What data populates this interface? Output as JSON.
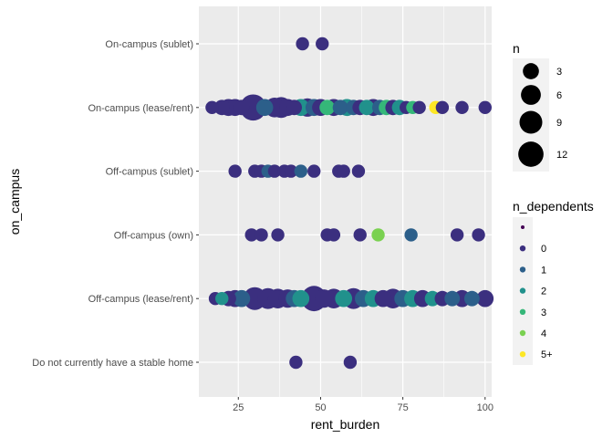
{
  "chart_data": {
    "type": "scatter",
    "title": "",
    "xlabel": "rent_burden",
    "ylabel": "on_campus",
    "xlim": [
      13,
      102
    ],
    "x_ticks": [
      25,
      50,
      75,
      100
    ],
    "categories": [
      "Do not currently have a stable home",
      "Off-campus (lease/rent)",
      "Off-campus (own)",
      "Off-campus (sublet)",
      "On-campus (lease/rent)",
      "On-campus (sublet)"
    ],
    "grid": true,
    "colors": {
      "0": "#440154",
      "0b": "#3b2f7f",
      "1": "#2c5f8a",
      "2": "#21918c",
      "3": "#35b779",
      "4": "#7ad151",
      "5+": "#fde725",
      "panel": "#ebebeb",
      "grid": "#ffffff"
    },
    "legend_n": {
      "title": "n",
      "placement": "right",
      "entries": [
        {
          "label": "3",
          "value": 3
        },
        {
          "label": "6",
          "value": 6
        },
        {
          "label": "9",
          "value": 9
        },
        {
          "label": "12",
          "value": 12
        }
      ]
    },
    "legend_dependents": {
      "title": "n_dependents",
      "placement": "right",
      "entries": [
        {
          "label": "",
          "color": "#440154"
        },
        {
          "label": "0",
          "color": "#3b2f7f"
        },
        {
          "label": "1",
          "color": "#2c5f8a"
        },
        {
          "label": "2",
          "color": "#21918c"
        },
        {
          "label": "3",
          "color": "#35b779"
        },
        {
          "label": "4",
          "color": "#7ad151"
        },
        {
          "label": "5+",
          "color": "#fde725"
        }
      ]
    },
    "points": [
      {
        "cat": "On-campus (sublet)",
        "x": 44.5,
        "n": 1,
        "dep": "0"
      },
      {
        "cat": "On-campus (sublet)",
        "x": 50.5,
        "n": 1,
        "dep": "0"
      },
      {
        "cat": "On-campus (lease/rent)",
        "x": 17,
        "n": 1,
        "dep": "0"
      },
      {
        "cat": "On-campus (lease/rent)",
        "x": 20,
        "n": 2,
        "dep": "0"
      },
      {
        "cat": "On-campus (lease/rent)",
        "x": 22,
        "n": 3,
        "dep": "0"
      },
      {
        "cat": "On-campus (lease/rent)",
        "x": 24,
        "n": 3,
        "dep": "0"
      },
      {
        "cat": "On-campus (lease/rent)",
        "x": 26,
        "n": 2,
        "dep": "0"
      },
      {
        "cat": "On-campus (lease/rent)",
        "x": 29.5,
        "n": 12,
        "dep": "0"
      },
      {
        "cat": "On-campus (lease/rent)",
        "x": 33,
        "n": 3,
        "dep": "1"
      },
      {
        "cat": "On-campus (lease/rent)",
        "x": 36,
        "n": 5,
        "dep": "0"
      },
      {
        "cat": "On-campus (lease/rent)",
        "x": 38,
        "n": 6,
        "dep": "0"
      },
      {
        "cat": "On-campus (lease/rent)",
        "x": 40,
        "n": 3,
        "dep": "0"
      },
      {
        "cat": "On-campus (lease/rent)",
        "x": 42,
        "n": 2,
        "dep": "0"
      },
      {
        "cat": "On-campus (lease/rent)",
        "x": 44,
        "n": 3,
        "dep": "2"
      },
      {
        "cat": "On-campus (lease/rent)",
        "x": 46,
        "n": 4,
        "dep": "0"
      },
      {
        "cat": "On-campus (lease/rent)",
        "x": 48,
        "n": 3,
        "dep": "1"
      },
      {
        "cat": "On-campus (lease/rent)",
        "x": 50,
        "n": 3,
        "dep": "0"
      },
      {
        "cat": "On-campus (lease/rent)",
        "x": 52,
        "n": 2,
        "dep": "3"
      },
      {
        "cat": "On-campus (lease/rent)",
        "x": 54,
        "n": 3,
        "dep": "0"
      },
      {
        "cat": "On-campus (lease/rent)",
        "x": 56,
        "n": 2,
        "dep": "1"
      },
      {
        "cat": "On-campus (lease/rent)",
        "x": 58,
        "n": 3,
        "dep": "2"
      },
      {
        "cat": "On-campus (lease/rent)",
        "x": 60,
        "n": 2,
        "dep": "1"
      },
      {
        "cat": "On-campus (lease/rent)",
        "x": 62,
        "n": 2,
        "dep": "0"
      },
      {
        "cat": "On-campus (lease/rent)",
        "x": 64,
        "n": 2,
        "dep": "2"
      },
      {
        "cat": "On-campus (lease/rent)",
        "x": 66,
        "n": 3,
        "dep": "0"
      },
      {
        "cat": "On-campus (lease/rent)",
        "x": 68,
        "n": 2,
        "dep": "1"
      },
      {
        "cat": "On-campus (lease/rent)",
        "x": 70,
        "n": 2,
        "dep": "3"
      },
      {
        "cat": "On-campus (lease/rent)",
        "x": 72,
        "n": 2,
        "dep": "0"
      },
      {
        "cat": "On-campus (lease/rent)",
        "x": 74,
        "n": 2,
        "dep": "2"
      },
      {
        "cat": "On-campus (lease/rent)",
        "x": 76,
        "n": 1,
        "dep": "0"
      },
      {
        "cat": "On-campus (lease/rent)",
        "x": 78,
        "n": 1,
        "dep": "3"
      },
      {
        "cat": "On-campus (lease/rent)",
        "x": 80,
        "n": 1,
        "dep": "0"
      },
      {
        "cat": "On-campus (lease/rent)",
        "x": 85,
        "n": 1,
        "dep": "5+"
      },
      {
        "cat": "On-campus (lease/rent)",
        "x": 87,
        "n": 1,
        "dep": "0"
      },
      {
        "cat": "On-campus (lease/rent)",
        "x": 93,
        "n": 1,
        "dep": "0"
      },
      {
        "cat": "On-campus (lease/rent)",
        "x": 100,
        "n": 1,
        "dep": "0"
      },
      {
        "cat": "Off-campus (sublet)",
        "x": 24,
        "n": 1,
        "dep": "0"
      },
      {
        "cat": "Off-campus (sublet)",
        "x": 30,
        "n": 1,
        "dep": "0"
      },
      {
        "cat": "Off-campus (sublet)",
        "x": 32,
        "n": 1,
        "dep": "0"
      },
      {
        "cat": "Off-campus (sublet)",
        "x": 34,
        "n": 1,
        "dep": "1"
      },
      {
        "cat": "Off-campus (sublet)",
        "x": 36,
        "n": 1,
        "dep": "0"
      },
      {
        "cat": "Off-campus (sublet)",
        "x": 39,
        "n": 1,
        "dep": "0"
      },
      {
        "cat": "Off-campus (sublet)",
        "x": 41,
        "n": 1,
        "dep": "0"
      },
      {
        "cat": "Off-campus (sublet)",
        "x": 44,
        "n": 1,
        "dep": "1"
      },
      {
        "cat": "Off-campus (sublet)",
        "x": 48,
        "n": 1,
        "dep": "0"
      },
      {
        "cat": "Off-campus (sublet)",
        "x": 55.5,
        "n": 1,
        "dep": "0"
      },
      {
        "cat": "Off-campus (sublet)",
        "x": 57,
        "n": 1,
        "dep": "0"
      },
      {
        "cat": "Off-campus (sublet)",
        "x": 61.5,
        "n": 1,
        "dep": "0"
      },
      {
        "cat": "Off-campus (own)",
        "x": 29,
        "n": 1,
        "dep": "0"
      },
      {
        "cat": "Off-campus (own)",
        "x": 32,
        "n": 1,
        "dep": "0"
      },
      {
        "cat": "Off-campus (own)",
        "x": 37,
        "n": 1,
        "dep": "0"
      },
      {
        "cat": "Off-campus (own)",
        "x": 52,
        "n": 1,
        "dep": "0"
      },
      {
        "cat": "Off-campus (own)",
        "x": 54,
        "n": 1,
        "dep": "0"
      },
      {
        "cat": "Off-campus (own)",
        "x": 62,
        "n": 1,
        "dep": "0"
      },
      {
        "cat": "Off-campus (own)",
        "x": 67.5,
        "n": 1,
        "dep": "4"
      },
      {
        "cat": "Off-campus (own)",
        "x": 77.5,
        "n": 1,
        "dep": "1"
      },
      {
        "cat": "Off-campus (own)",
        "x": 91.5,
        "n": 1,
        "dep": "0"
      },
      {
        "cat": "Off-campus (own)",
        "x": 98,
        "n": 1,
        "dep": "0"
      },
      {
        "cat": "Off-campus (lease/rent)",
        "x": 18,
        "n": 1,
        "dep": "0"
      },
      {
        "cat": "Off-campus (lease/rent)",
        "x": 20,
        "n": 1,
        "dep": "2"
      },
      {
        "cat": "Off-campus (lease/rent)",
        "x": 22,
        "n": 2,
        "dep": "0"
      },
      {
        "cat": "Off-campus (lease/rent)",
        "x": 24,
        "n": 3,
        "dep": "0"
      },
      {
        "cat": "Off-campus (lease/rent)",
        "x": 26,
        "n": 3,
        "dep": "1"
      },
      {
        "cat": "Off-campus (lease/rent)",
        "x": 30,
        "n": 8,
        "dep": "0"
      },
      {
        "cat": "Off-campus (lease/rent)",
        "x": 34,
        "n": 6,
        "dep": "0"
      },
      {
        "cat": "Off-campus (lease/rent)",
        "x": 37,
        "n": 5,
        "dep": "0"
      },
      {
        "cat": "Off-campus (lease/rent)",
        "x": 40,
        "n": 4,
        "dep": "0"
      },
      {
        "cat": "Off-campus (lease/rent)",
        "x": 42,
        "n": 3,
        "dep": "1"
      },
      {
        "cat": "Off-campus (lease/rent)",
        "x": 44,
        "n": 3,
        "dep": "2"
      },
      {
        "cat": "Off-campus (lease/rent)",
        "x": 48,
        "n": 11,
        "dep": "0"
      },
      {
        "cat": "Off-campus (lease/rent)",
        "x": 51,
        "n": 4,
        "dep": "0"
      },
      {
        "cat": "Off-campus (lease/rent)",
        "x": 54,
        "n": 5,
        "dep": "0"
      },
      {
        "cat": "Off-campus (lease/rent)",
        "x": 57,
        "n": 3,
        "dep": "2"
      },
      {
        "cat": "Off-campus (lease/rent)",
        "x": 60,
        "n": 6,
        "dep": "0"
      },
      {
        "cat": "Off-campus (lease/rent)",
        "x": 63,
        "n": 3,
        "dep": "1"
      },
      {
        "cat": "Off-campus (lease/rent)",
        "x": 66,
        "n": 3,
        "dep": "2"
      },
      {
        "cat": "Off-campus (lease/rent)",
        "x": 69,
        "n": 3,
        "dep": "0"
      },
      {
        "cat": "Off-campus (lease/rent)",
        "x": 72,
        "n": 5,
        "dep": "0"
      },
      {
        "cat": "Off-campus (lease/rent)",
        "x": 75,
        "n": 3,
        "dep": "1"
      },
      {
        "cat": "Off-campus (lease/rent)",
        "x": 78,
        "n": 3,
        "dep": "2"
      },
      {
        "cat": "Off-campus (lease/rent)",
        "x": 81,
        "n": 3,
        "dep": "0"
      },
      {
        "cat": "Off-campus (lease/rent)",
        "x": 84,
        "n": 2,
        "dep": "2"
      },
      {
        "cat": "Off-campus (lease/rent)",
        "x": 87,
        "n": 2,
        "dep": "0"
      },
      {
        "cat": "Off-campus (lease/rent)",
        "x": 90,
        "n": 2,
        "dep": "1"
      },
      {
        "cat": "Off-campus (lease/rent)",
        "x": 93,
        "n": 3,
        "dep": "0"
      },
      {
        "cat": "Off-campus (lease/rent)",
        "x": 96,
        "n": 2,
        "dep": "1"
      },
      {
        "cat": "Off-campus (lease/rent)",
        "x": 100,
        "n": 3,
        "dep": "0"
      },
      {
        "cat": "Do not currently have a stable home",
        "x": 42.5,
        "n": 1,
        "dep": "0"
      },
      {
        "cat": "Do not currently have a stable home",
        "x": 59,
        "n": 1,
        "dep": "0"
      }
    ]
  }
}
